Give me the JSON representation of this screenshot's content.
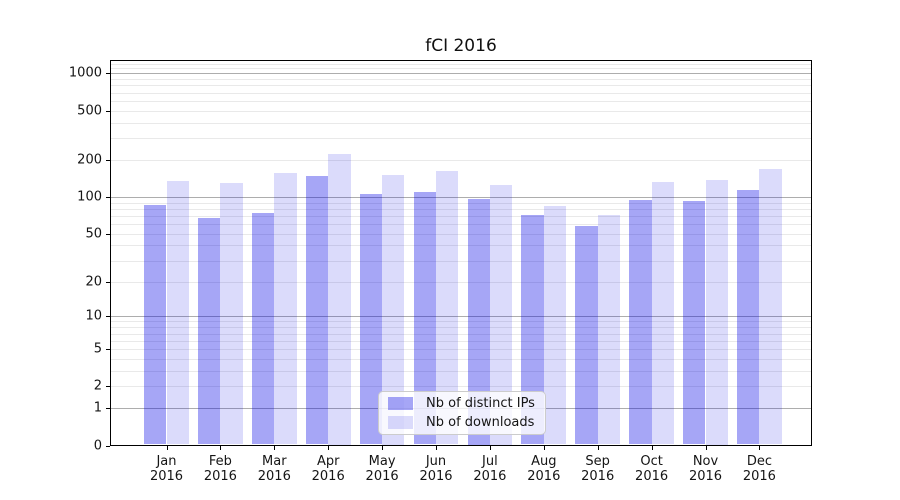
{
  "chart_data": {
    "type": "bar",
    "title": "fCI 2016",
    "scale": "log1p",
    "ylim": [
      0,
      1280
    ],
    "yticks": [
      0,
      1,
      2,
      5,
      10,
      20,
      50,
      100,
      200,
      500,
      1000
    ],
    "categories": [
      "Jan\n2016",
      "Feb\n2016",
      "Mar\n2016",
      "Apr\n2016",
      "May\n2016",
      "Jun\n2016",
      "Jul\n2016",
      "Aug\n2016",
      "Sep\n2016",
      "Oct\n2016",
      "Nov\n2016",
      "Dec\n2016"
    ],
    "series": [
      {
        "name": "Nb of distinct IPs",
        "color": "rgba(0,0,230,0.35)",
        "values": [
          86,
          67,
          74,
          148,
          106,
          110,
          97,
          71,
          58,
          95,
          93,
          113
        ]
      },
      {
        "name": "Nb of downloads",
        "color": "rgba(0,0,230,0.14)",
        "values": [
          134,
          129,
          155,
          225,
          152,
          163,
          126,
          84,
          71,
          133,
          137,
          168
        ]
      }
    ],
    "legend": {
      "position": "lower center"
    },
    "grid": {
      "major": true,
      "minor": true
    },
    "colors": {
      "major_grid": "#adadad",
      "minor_grid": "#e9e9e9",
      "spine": "#000000"
    }
  }
}
